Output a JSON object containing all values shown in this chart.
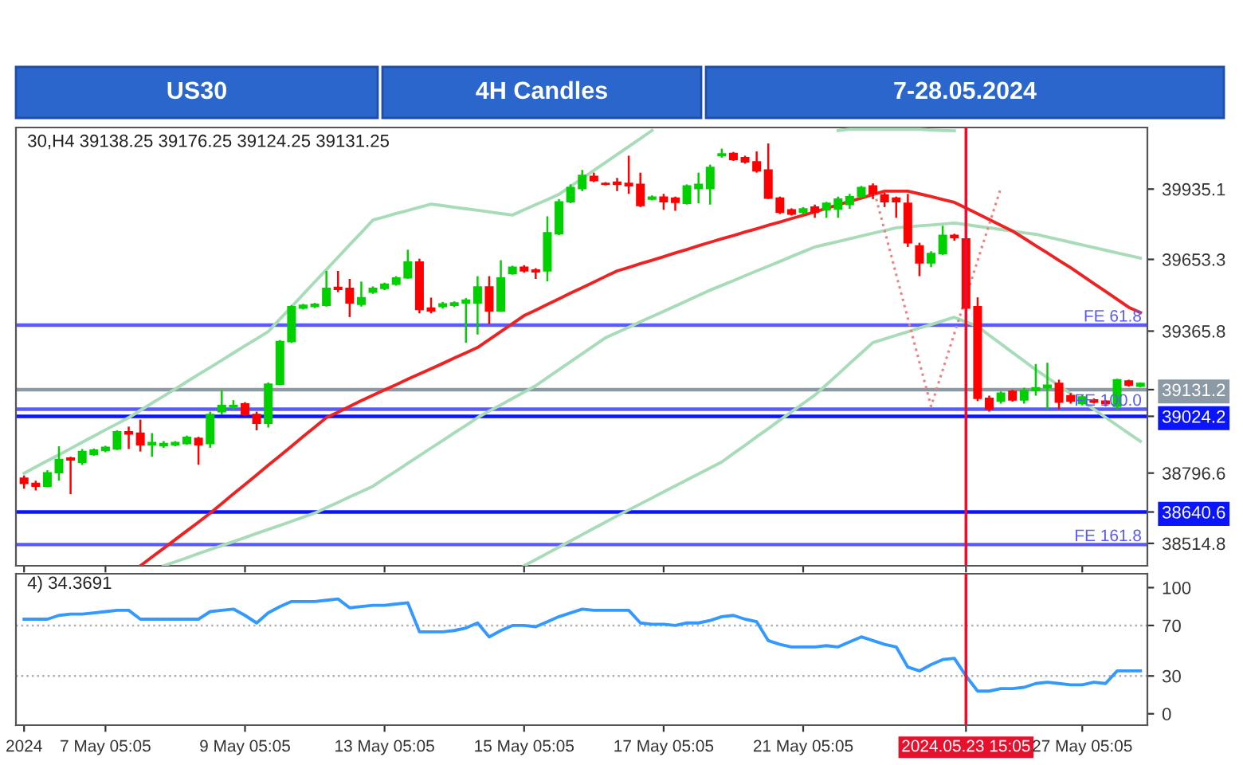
{
  "chart_data": [
    {
      "type": "candlestick",
      "title": "US30",
      "subtitle": "4H Candles",
      "annotations": [
        "7-28.05.2024",
        "30,H4 39138.25 39176.25 39124.25 39131.25"
      ],
      "categories": [
        "2024",
        null,
        null,
        null,
        null,
        null,
        null,
        "7 May 05:05",
        null,
        null,
        null,
        null,
        null,
        null,
        null,
        null,
        null,
        null,
        null,
        "9 May 05:05",
        null,
        null,
        null,
        null,
        null,
        null,
        null,
        null,
        null,
        null,
        null,
        "13 May 05:05",
        null,
        null,
        null,
        null,
        null,
        null,
        null,
        null,
        null,
        null,
        null,
        "15 May 05:05",
        null,
        null,
        null,
        null,
        null,
        null,
        null,
        null,
        null,
        null,
        null,
        "17 May 05:05",
        null,
        null,
        null,
        null,
        null,
        null,
        null,
        null,
        null,
        null,
        null,
        "21 May 05:05",
        null,
        null,
        null,
        null,
        null,
        null,
        null,
        null,
        null,
        null,
        null,
        null,
        null,
        "2024.05.23 15:05",
        null,
        null,
        null,
        null,
        null,
        null,
        null,
        null,
        null,
        "27 May 05:05",
        null,
        null,
        null,
        null,
        null
      ],
      "ohlc": [
        [
          38776,
          38787,
          38734,
          38755
        ],
        [
          38755,
          38766,
          38727,
          38744
        ],
        [
          38744,
          38808,
          38740,
          38798
        ],
        [
          38798,
          38904,
          38766,
          38851
        ],
        [
          38857,
          38862,
          38712,
          38849
        ],
        [
          38840,
          38893,
          38829,
          38883
        ],
        [
          38872,
          38895,
          38866,
          38889
        ],
        [
          38887,
          38906,
          38880,
          38900
        ],
        [
          38893,
          38968,
          38889,
          38962
        ],
        [
          38962,
          38983,
          38893,
          38953
        ],
        [
          38957,
          39011,
          38883,
          38910
        ],
        [
          38910,
          38957,
          38862,
          38919
        ],
        [
          38906,
          38925,
          38898,
          38915
        ],
        [
          38910,
          38925,
          38904,
          38919
        ],
        [
          38915,
          38947,
          38910,
          38940
        ],
        [
          38936,
          38942,
          38830,
          38910
        ],
        [
          38915,
          39043,
          38898,
          39032
        ],
        [
          39043,
          39128,
          39032,
          39068
        ],
        [
          39062,
          39089,
          39053,
          39068
        ],
        [
          39074,
          39081,
          39026,
          39032
        ],
        [
          39032,
          39043,
          38968,
          38996
        ],
        [
          38996,
          39160,
          38979,
          39153
        ],
        [
          39153,
          39330,
          39150,
          39324
        ],
        [
          39324,
          39470,
          39318,
          39464
        ],
        [
          39458,
          39475,
          39452,
          39469
        ],
        [
          39464,
          39479,
          39458,
          39473
        ],
        [
          39469,
          39607,
          39464,
          39537
        ],
        [
          39541,
          39607,
          39522,
          39533
        ],
        [
          39537,
          39575,
          39422,
          39479
        ],
        [
          39473,
          39564,
          39464,
          39500
        ],
        [
          39522,
          39545,
          39515,
          39537
        ],
        [
          39537,
          39560,
          39530,
          39554
        ],
        [
          39554,
          39586,
          39548,
          39579
        ],
        [
          39579,
          39692,
          39575,
          39643
        ],
        [
          39643,
          39656,
          39437,
          39452
        ],
        [
          39458,
          39500,
          39437,
          39447
        ],
        [
          39464,
          39483,
          39456,
          39475
        ],
        [
          39469,
          39485,
          39462,
          39479
        ],
        [
          39479,
          39498,
          39319,
          39490
        ],
        [
          39479,
          39586,
          39352,
          39543
        ],
        [
          39543,
          39586,
          39394,
          39447
        ],
        [
          39447,
          39650,
          39443,
          39579
        ],
        [
          39596,
          39628,
          39592,
          39622
        ],
        [
          39622,
          39630,
          39600,
          39607
        ],
        [
          39611,
          39618,
          39575,
          39603
        ],
        [
          39607,
          39826,
          39565,
          39760
        ],
        [
          39756,
          39895,
          39750,
          39884
        ],
        [
          39884,
          39954,
          39878,
          39941
        ],
        [
          39937,
          40012,
          39927,
          39990
        ],
        [
          39986,
          40001,
          39963,
          39969
        ],
        [
          39958,
          39963,
          39950,
          39954
        ],
        [
          39963,
          39980,
          39927,
          39954
        ],
        [
          39958,
          40069,
          39916,
          39948
        ],
        [
          39954,
          40001,
          39863,
          39869
        ],
        [
          39895,
          39910,
          39890,
          39903
        ],
        [
          39903,
          39916,
          39852,
          39884
        ],
        [
          39899,
          39905,
          39848,
          39882
        ],
        [
          39878,
          39954,
          39873,
          39948
        ],
        [
          39937,
          40001,
          39878,
          39954
        ],
        [
          39937,
          40033,
          39873,
          40022
        ],
        [
          40069,
          40097,
          40061,
          40076
        ],
        [
          40078,
          40084,
          40048,
          40054
        ],
        [
          40061,
          40069,
          40037,
          40044
        ],
        [
          40044,
          40086,
          40001,
          40008
        ],
        [
          40012,
          40118,
          39895,
          39899
        ],
        [
          39899,
          39905,
          39835,
          39842
        ],
        [
          39852,
          39858,
          39829,
          39835
        ],
        [
          39842,
          39863,
          39835,
          39856
        ],
        [
          39863,
          39873,
          39820,
          39842
        ],
        [
          39852,
          39884,
          39820,
          39878
        ],
        [
          39856,
          39905,
          39820,
          39895
        ],
        [
          39873,
          39916,
          39856,
          39905
        ],
        [
          39905,
          39948,
          39899,
          39941
        ],
        [
          39948,
          39958,
          39895,
          39916
        ],
        [
          39912,
          39920,
          39863,
          39884
        ],
        [
          39899,
          39905,
          39820,
          39884
        ],
        [
          39878,
          39916,
          39703,
          39720
        ],
        [
          39707,
          39720,
          39586,
          39639
        ],
        [
          39639,
          39686,
          39622,
          39677
        ],
        [
          39677,
          39788,
          39671,
          39750
        ],
        [
          39750,
          39756,
          39728,
          39741
        ],
        [
          39735,
          39741,
          39450,
          39458
        ],
        [
          39464,
          39501,
          39085,
          39096
        ],
        [
          39096,
          39107,
          39043,
          39053
        ],
        [
          39085,
          39124,
          39075,
          39117
        ],
        [
          39124,
          39130,
          39083,
          39090
        ],
        [
          39090,
          39139,
          39075,
          39128
        ],
        [
          39128,
          39234,
          39107,
          39139
        ],
        [
          39139,
          39239,
          39053,
          39149
        ],
        [
          39156,
          39171,
          39053,
          39081
        ],
        [
          39107,
          39117,
          39075,
          39085
        ],
        [
          39075,
          39109,
          39068,
          39102
        ],
        [
          39090,
          39096,
          39075,
          39081
        ],
        [
          39085,
          39090,
          39064,
          39075
        ],
        [
          39064,
          39175,
          39053,
          39171
        ],
        [
          39166,
          39171,
          39143,
          39149
        ],
        [
          39145,
          39160,
          39140,
          39156
        ]
      ],
      "colors": [
        "#ff0000",
        "#ff0000",
        "#00d000",
        "#00d000",
        "#ff0000",
        "#00d000",
        "#00d000",
        "#00d000",
        "#00d000",
        "#ff0000",
        "#ff0000",
        "#00d000",
        "#00d000",
        "#00d000",
        "#00d000",
        "#ff0000",
        "#00d000",
        "#00d000",
        "#00d000",
        "#ff0000",
        "#ff0000",
        "#00d000",
        "#00d000",
        "#00d000",
        "#00d000",
        "#00d000",
        "#00d000",
        "#ff0000",
        "#ff0000",
        "#00d000",
        "#00d000",
        "#00d000",
        "#00d000",
        "#00d000",
        "#ff0000",
        "#ff0000",
        "#00d000",
        "#00d000",
        "#00d000",
        "#00d000",
        "#ff0000",
        "#00d000",
        "#00d000",
        "#ff0000",
        "#ff0000",
        "#00d000",
        "#00d000",
        "#00d000",
        "#00d000",
        "#ff0000",
        "#ff0000",
        "#ff0000",
        "#ff0000",
        "#ff0000",
        "#00d000",
        "#ff0000",
        "#ff0000",
        "#00d000",
        "#00d000",
        "#00d000",
        "#00d000",
        "#ff0000",
        "#ff0000",
        "#ff0000",
        "#ff0000",
        "#ff0000",
        "#ff0000",
        "#00d000",
        "#ff0000",
        "#00d000",
        "#00d000",
        "#00d000",
        "#00d000",
        "#ff0000",
        "#ff0000",
        "#ff0000",
        "#ff0000",
        "#ff0000",
        "#00d000",
        "#00d000",
        "#ff0000",
        "#ff0000",
        "#ff0000",
        "#ff0000",
        "#00d000",
        "#ff0000",
        "#00d000",
        "#00d000",
        "#00d000",
        "#ff0000",
        "#ff0000",
        "#00d000",
        "#ff0000",
        "#ff0000",
        "#00d000",
        "#ff0000",
        "#00d000"
      ],
      "series": [
        {
          "type": "line",
          "color": "#a8dcb8",
          "values": [
            38796,
            38821,
            38846,
            38870,
            38895,
            38920,
            38945,
            38970,
            38994,
            39019,
            39048,
            39077,
            39105,
            39134,
            39163,
            39192,
            39220,
            39249,
            39278,
            39307,
            39335,
            39364,
            39414,
            39463,
            39513,
            39563,
            39612,
            39662,
            39712,
            39761,
            39811,
            39824,
            39837,
            39849,
            39862,
            39875,
            39869,
            39862,
            39856,
            39850,
            39844,
            39837,
            39831,
            39852,
            39873,
            39893,
            39914,
            39946,
            39978,
            40010,
            40042,
            40074,
            40106,
            40138,
            40170,
            null,
            null,
            null,
            null,
            null,
            null,
            null,
            null,
            null,
            null,
            null,
            null,
            null,
            null,
            null,
            40170,
            40175,
            40175,
            40175,
            40175,
            40175,
            40175,
            40175,
            40172,
            40170,
            40169,
            null,
            null,
            null,
            null,
            null,
            null,
            null,
            null,
            null,
            null,
            null,
            null,
            null,
            null,
            null,
            null
          ]
        },
        {
          "type": "line",
          "color": "#a8dcb8",
          "values": [
            null,
            null,
            null,
            null,
            null,
            null,
            null,
            null,
            null,
            null,
            null,
            null,
            38425,
            38441,
            38457,
            38474,
            38490,
            38506,
            38522,
            38538,
            38555,
            38571,
            38587,
            38603,
            38620,
            38636,
            38658,
            38679,
            38701,
            38722,
            38744,
            38775,
            38805,
            38836,
            38866,
            38897,
            38927,
            38958,
            38988,
            39019,
            39045,
            39070,
            39096,
            39121,
            39147,
            39179,
            39211,
            39243,
            39275,
            39307,
            39339,
            39360,
            39381,
            39403,
            39424,
            39445,
            39466,
            39487,
            39509,
            39530,
            39549,
            39568,
            39588,
            39607,
            39626,
            39645,
            39665,
            39684,
            39703,
            39714,
            39725,
            39736,
            39747,
            39758,
            39769,
            39780,
            39784,
            39788,
            39791,
            39795,
            39799,
            39793,
            39786,
            39780,
            39773,
            39767,
            39760,
            39754,
            39743,
            39733,
            39722,
            39711,
            39701,
            39690,
            39679,
            39669,
            39658
          ]
        },
        {
          "type": "line",
          "color": "#a8dcb8",
          "values": [
            null,
            null,
            null,
            null,
            null,
            null,
            null,
            null,
            null,
            null,
            null,
            null,
            null,
            null,
            null,
            null,
            null,
            null,
            null,
            null,
            null,
            null,
            null,
            null,
            null,
            null,
            null,
            null,
            null,
            null,
            null,
            null,
            null,
            null,
            null,
            null,
            null,
            null,
            null,
            null,
            null,
            null,
            null,
            38425,
            38450,
            38475,
            38500,
            38525,
            38550,
            38575,
            38600,
            38625,
            38649,
            38673,
            38697,
            38721,
            38745,
            38769,
            38793,
            38817,
            38841,
            38875,
            38908,
            38942,
            38975,
            39009,
            39042,
            39076,
            39109,
            39151,
            39193,
            39236,
            39278,
            39320,
            39334,
            39349,
            39363,
            39378,
            39392,
            39407,
            39421,
            39403,
            39384,
            39349,
            39315,
            39280,
            39246,
            39211,
            39179,
            39147,
            39115,
            39084,
            39052,
            39020,
            38988,
            38956,
            38924
          ]
        },
        {
          "type": "line",
          "color": "#ee2222",
          "values": [
            null,
            null,
            null,
            null,
            null,
            null,
            null,
            null,
            null,
            null,
            38425,
            38460,
            38495,
            38530,
            38565,
            38600,
            38636,
            38674,
            38713,
            38751,
            38789,
            38828,
            38866,
            38904,
            38943,
            38981,
            39019,
            39041,
            39064,
            39087,
            39109,
            39130,
            39151,
            39173,
            39194,
            39215,
            39236,
            39258,
            39279,
            39300,
            39332,
            39364,
            39396,
            39428,
            39450,
            39473,
            39495,
            39518,
            39540,
            39562,
            39585,
            39607,
            39621,
            39636,
            39650,
            39664,
            39679,
            39693,
            39708,
            39722,
            39736,
            39749,
            39763,
            39776,
            39790,
            39803,
            39817,
            39830,
            39844,
            39858,
            39872,
            39886,
            39899,
            39913,
            39927,
            39927,
            39927,
            39916,
            39905,
            39893,
            39882,
            39859,
            39836,
            39813,
            39790,
            39767,
            39738,
            39708,
            39679,
            39649,
            39620,
            39588,
            39556,
            39525,
            39493,
            39461,
            39440
          ]
        },
        {
          "type": "line",
          "color": "#f08080",
          "line_style": "dotted",
          "values": [
            null,
            null,
            null,
            null,
            null,
            null,
            null,
            null,
            null,
            null,
            null,
            null,
            null,
            null,
            null,
            null,
            null,
            null,
            null,
            null,
            null,
            null,
            null,
            null,
            null,
            null,
            null,
            null,
            null,
            null,
            null,
            null,
            null,
            null,
            null,
            null,
            null,
            null,
            null,
            null,
            null,
            null,
            null,
            null,
            null,
            null,
            null,
            null,
            null,
            null,
            null,
            null,
            null,
            null,
            null,
            null,
            null,
            null,
            null,
            null,
            null,
            null,
            null,
            null,
            null,
            null,
            null,
            null,
            null,
            null,
            null,
            null,
            null,
            39946,
            39770,
            39593,
            39417,
            39240,
            39064,
            39210,
            39356,
            39502,
            39648,
            39794,
            39940,
            null,
            null,
            null,
            null,
            null,
            null,
            null,
            null,
            null,
            null,
            null,
            null
          ]
        }
      ],
      "ylim": [
        38425,
        40182
      ],
      "yticks": [
        38514.8,
        38640.6,
        38796.6,
        39024.2,
        39131.2,
        39365.8,
        39653.3,
        39935.1
      ],
      "tick_labels": "y",
      "ref_lines": [
        {
          "axis": "y",
          "value": 39131.2,
          "color": "#8c9aa6"
        },
        {
          "axis": "y",
          "value": 39024.2,
          "color": "#0a14ff"
        },
        {
          "axis": "y",
          "value": 38640.6,
          "color": "#0a14ff"
        },
        {
          "axis": "y",
          "value": 39390,
          "label": "FE 61.8",
          "color": "#5a5aff"
        },
        {
          "axis": "y",
          "value": 39053,
          "label": "FE 100.0",
          "color": "#5a5aff"
        },
        {
          "axis": "y",
          "value": 38510,
          "label": "FE 161.8",
          "color": "#5a5aff"
        },
        {
          "axis": "x",
          "value": "2024.05.23 15:05",
          "color": "#e8112d"
        }
      ]
    },
    {
      "type": "line",
      "annotations": [
        "4) 34.3691"
      ],
      "categories": [
        "2024",
        null,
        null,
        null,
        null,
        null,
        null,
        "7 May 05:05",
        null,
        null,
        null,
        null,
        null,
        null,
        null,
        null,
        null,
        null,
        null,
        "9 May 05:05",
        null,
        null,
        null,
        null,
        null,
        null,
        null,
        null,
        null,
        null,
        null,
        "13 May 05:05",
        null,
        null,
        null,
        null,
        null,
        null,
        null,
        null,
        null,
        null,
        null,
        "15 May 05:05",
        null,
        null,
        null,
        null,
        null,
        null,
        null,
        null,
        null,
        null,
        null,
        "17 May 05:05",
        null,
        null,
        null,
        null,
        null,
        null,
        null,
        null,
        null,
        null,
        null,
        "21 May 05:05",
        null,
        null,
        null,
        null,
        null,
        null,
        null,
        null,
        null,
        null,
        null,
        null,
        null,
        "2024.05.23 15:05",
        null,
        null,
        null,
        null,
        null,
        null,
        null,
        null,
        null,
        "27 May 05:05",
        null,
        null,
        null,
        null,
        null
      ],
      "series": [
        {
          "color": "#3399ff",
          "values": [
            75,
            75,
            75,
            78,
            79,
            79,
            80,
            81,
            82,
            82,
            75,
            75,
            75,
            75,
            75,
            75,
            81,
            82,
            83,
            78,
            72,
            80,
            85,
            89,
            89,
            89,
            90,
            91,
            84,
            85,
            86,
            86,
            87,
            88,
            65,
            65,
            65,
            66,
            68,
            72,
            61,
            66,
            70,
            70,
            69,
            73,
            77,
            80,
            83,
            82,
            82,
            82,
            82,
            72,
            71,
            71,
            70,
            72,
            72,
            74,
            77,
            78,
            75,
            73,
            58,
            55,
            53,
            53,
            53,
            54,
            53,
            57,
            61,
            58,
            55,
            53,
            37,
            34,
            39,
            43,
            44,
            30,
            18,
            18,
            20,
            20,
            21,
            24,
            25,
            24,
            23,
            23,
            25,
            24,
            34,
            34,
            34
          ]
        }
      ],
      "ylim": [
        -9,
        111
      ],
      "yticks": [
        0,
        30,
        70,
        100
      ],
      "ref_lines": [
        {
          "axis": "y",
          "value": 70,
          "color": "#b0b0b0",
          "line_style": "dotted"
        },
        {
          "axis": "y",
          "value": 30,
          "color": "#b0b0b0",
          "line_style": "dotted"
        },
        {
          "axis": "x",
          "value": "2024.05.23 15:05",
          "color": "#e8112d"
        }
      ]
    }
  ]
}
